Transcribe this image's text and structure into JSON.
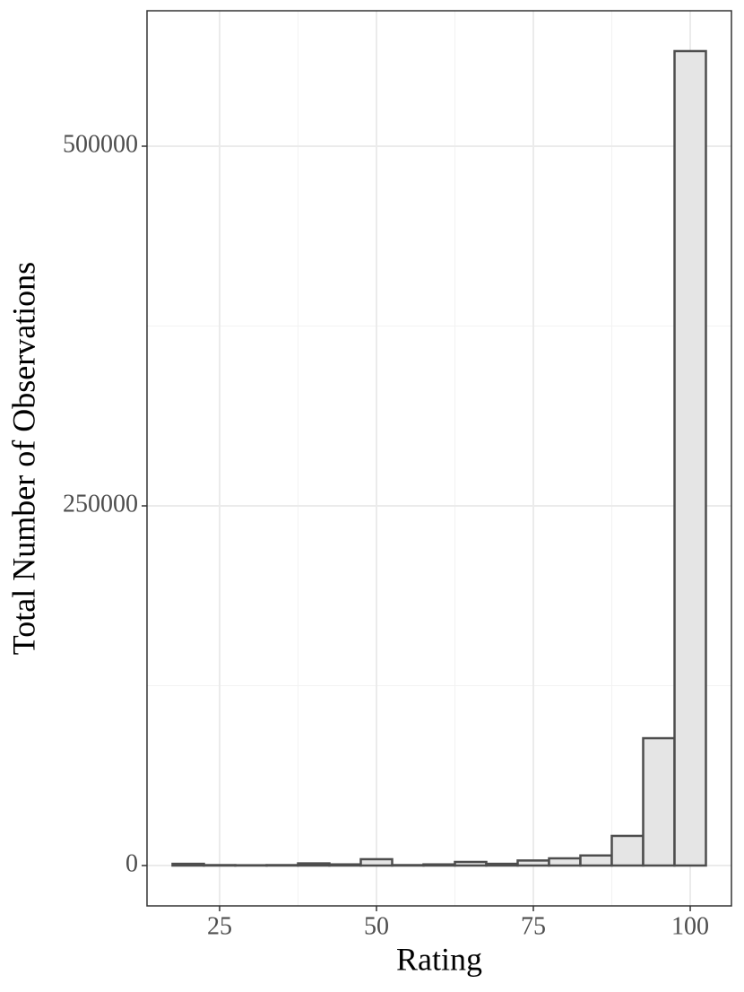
{
  "chart_data": {
    "type": "histogram",
    "x_label": "Rating",
    "y_label": "Total Number of Observations",
    "bins": [
      17.5,
      22.5,
      27.5,
      32.5,
      37.5,
      42.5,
      47.5,
      52.5,
      57.5,
      62.5,
      67.5,
      72.5,
      77.5,
      82.5,
      87.5,
      92.5,
      97.5,
      102.5
    ],
    "counts": [
      1200,
      300,
      200,
      300,
      1500,
      800,
      4400,
      300,
      800,
      2500,
      1200,
      3500,
      5000,
      7000,
      20600,
      88500,
      566100
    ],
    "color": "#e5e5e5",
    "edge_color": "#4d4d4d",
    "xlim": [
      13.43,
      106.57
    ],
    "ylim": [
      -28055,
      594140
    ],
    "xticks": [
      25,
      50,
      75,
      100
    ],
    "yticks": [
      0,
      250000,
      500000
    ],
    "x_minor_ticks": [
      37.5,
      62.5,
      87.5
    ],
    "y_minor_ticks": [
      125000,
      375000
    ],
    "grid": true
  }
}
